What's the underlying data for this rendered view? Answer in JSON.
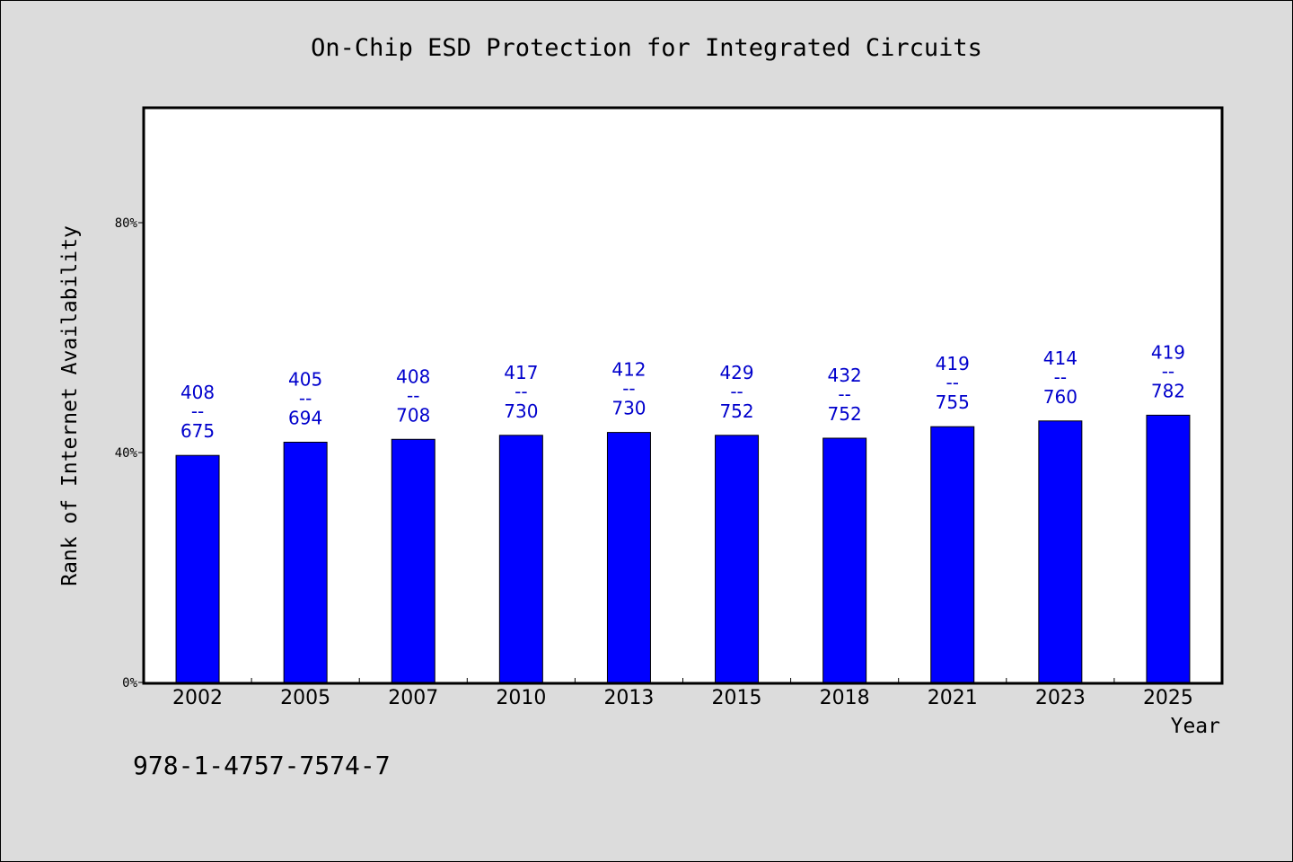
{
  "chart_data": {
    "type": "bar",
    "title": "On-Chip ESD Protection for Integrated Circuits",
    "xlabel": "Year",
    "ylabel": "Rank of Internet Availability",
    "categories": [
      "2002",
      "2005",
      "2007",
      "2010",
      "2013",
      "2015",
      "2018",
      "2021",
      "2023",
      "2025"
    ],
    "values": [
      39.5,
      41.8,
      42.3,
      43.0,
      43.5,
      43.0,
      42.5,
      44.5,
      45.5,
      46.5
    ],
    "data_labels": [
      {
        "top": "408",
        "sep": "--",
        "bottom": "675"
      },
      {
        "top": "405",
        "sep": "--",
        "bottom": "694"
      },
      {
        "top": "408",
        "sep": "--",
        "bottom": "708"
      },
      {
        "top": "417",
        "sep": "--",
        "bottom": "730"
      },
      {
        "top": "412",
        "sep": "--",
        "bottom": "730"
      },
      {
        "top": "429",
        "sep": "--",
        "bottom": "752"
      },
      {
        "top": "432",
        "sep": "--",
        "bottom": "752"
      },
      {
        "top": "419",
        "sep": "--",
        "bottom": "755"
      },
      {
        "top": "414",
        "sep": "--",
        "bottom": "760"
      },
      {
        "top": "419",
        "sep": "--",
        "bottom": "782"
      }
    ],
    "yticks": [
      {
        "value": 0,
        "label": "0%"
      },
      {
        "value": 40,
        "label": "40%"
      },
      {
        "value": 80,
        "label": "80%"
      }
    ],
    "ylim": [
      0,
      100
    ],
    "grid": false,
    "bar_color": "#0000ff",
    "label_color": "#0000cc",
    "background": "#dcdcdc",
    "plot_background": "#ffffff"
  },
  "footer": {
    "isbn": "978-1-4757-7574-7"
  }
}
